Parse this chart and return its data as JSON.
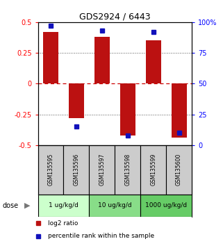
{
  "title": "GDS2924 / 6443",
  "samples": [
    "GSM135595",
    "GSM135596",
    "GSM135597",
    "GSM135598",
    "GSM135599",
    "GSM135600"
  ],
  "log2_ratios": [
    0.42,
    -0.28,
    0.38,
    -0.42,
    0.35,
    -0.44
  ],
  "percentile_ranks": [
    97,
    15,
    93,
    8,
    92,
    10
  ],
  "ylim_left": [
    -0.5,
    0.5
  ],
  "ylim_right": [
    0,
    100
  ],
  "yticks_left": [
    -0.5,
    -0.25,
    0,
    0.25,
    0.5
  ],
  "yticks_right": [
    0,
    25,
    50,
    75,
    100
  ],
  "ytick_labels_right": [
    "0",
    "25",
    "50",
    "75",
    "100%"
  ],
  "bar_color": "#BB1111",
  "dot_color": "#1111BB",
  "dose_labels": [
    "1 ug/kg/d",
    "10 ug/kg/d",
    "1000 ug/kg/d"
  ],
  "dose_colors": [
    "#ccffcc",
    "#88dd88",
    "#66cc66"
  ],
  "sample_bg_color": "#cccccc",
  "background_color": "#ffffff",
  "legend_red_label": "log2 ratio",
  "legend_blue_label": "percentile rank within the sample",
  "hline_0_color": "#cc0000",
  "hline_dotted_color": "#555555",
  "bar_width": 0.6
}
